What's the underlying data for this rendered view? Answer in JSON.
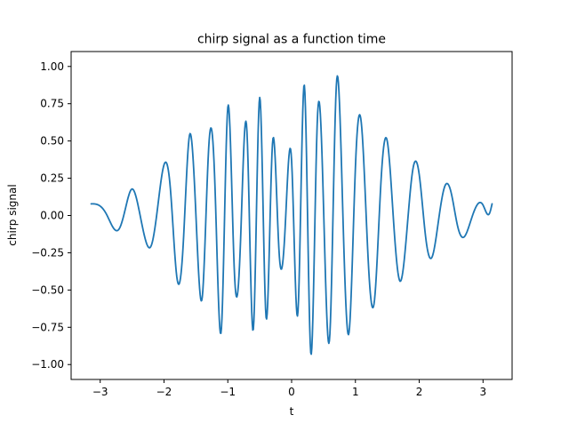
{
  "chart_data": {
    "type": "line",
    "title": "chirp signal as a function time",
    "xlabel": "t",
    "ylabel": "chirp signal",
    "xlim": [
      -3.4557,
      3.4557
    ],
    "ylim": [
      -1.1,
      1.1
    ],
    "xticks": [
      -3,
      -2,
      -1,
      0,
      1,
      2,
      3
    ],
    "xtick_labels": [
      "−3",
      "−2",
      "−1",
      "0",
      "1",
      "2",
      "3"
    ],
    "yticks": [
      -1.0,
      -0.75,
      -0.5,
      -0.25,
      0.0,
      0.25,
      0.5,
      0.75,
      1.0
    ],
    "ytick_labels": [
      "−1.00",
      "−0.75",
      "−0.50",
      "−0.25",
      "0.00",
      "0.25",
      "0.50",
      "0.75",
      "1.00"
    ],
    "grid": false,
    "legend": "none",
    "series": [
      {
        "color": "#1f77b4",
        "x": [
          -3.14159,
          -3.1,
          -3.0,
          -2.9,
          -2.8,
          -2.7,
          -2.6,
          -2.5,
          -2.4,
          -2.3,
          -2.2,
          -2.1,
          -2.0,
          -1.9,
          -1.8,
          -1.7,
          -1.6,
          -1.5,
          -1.4,
          -1.3,
          -1.2,
          -1.1,
          -1.0,
          -0.9,
          -0.8,
          -0.7,
          -0.6,
          -0.5,
          -0.4,
          -0.3,
          -0.2,
          -0.1,
          0.0,
          0.1,
          0.2,
          0.3,
          0.4,
          0.5,
          0.6,
          0.7,
          0.8,
          0.9,
          1.0,
          1.1,
          1.2,
          1.3,
          1.4,
          1.5,
          1.6,
          1.7,
          1.8,
          1.9,
          2.0,
          2.1,
          2.2,
          2.3,
          2.4,
          2.5,
          2.6,
          2.7,
          2.8,
          2.9,
          3.0,
          3.1,
          3.14159
        ],
        "y": [
          0.078,
          0.078,
          0.063,
          0.007,
          -0.079,
          -0.088,
          0.055,
          0.178,
          0.055,
          -0.148,
          -0.202,
          0.053,
          0.34,
          0.18,
          -0.409,
          -0.201,
          0.539,
          0.006,
          -0.547,
          0.451,
          0.182,
          -0.758,
          0.726,
          -0.347,
          -0.165,
          0.564,
          -0.764,
          0.792,
          -0.684,
          0.481,
          -0.219,
          -0.072,
          0.367,
          -0.644,
          0.874,
          -0.921,
          0.602,
          0.065,
          -0.795,
          0.865,
          0.061,
          -0.785,
          0.323,
          0.586,
          -0.296,
          -0.564,
          0.222,
          0.497,
          -0.052,
          -0.441,
          -0.136,
          0.309,
          0.275,
          -0.142,
          -0.28,
          -0.041,
          0.195,
          0.154,
          -0.068,
          -0.145,
          -0.046,
          0.066,
          0.07,
          0.013,
          0.078
        ]
      }
    ]
  }
}
